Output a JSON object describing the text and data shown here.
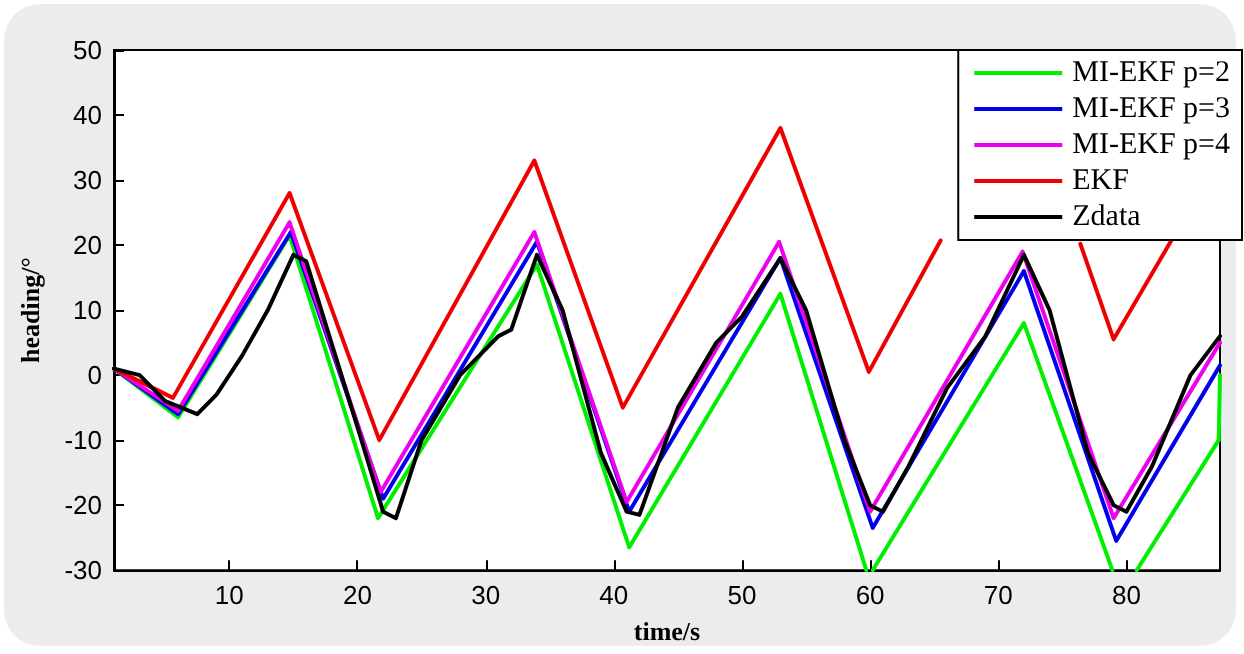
{
  "chart_data": {
    "type": "line",
    "xlabel": "time/s",
    "ylabel": "heading/°",
    "xlim": [
      1,
      87.3
    ],
    "xticks": [
      10,
      20,
      30,
      40,
      50,
      60,
      70,
      80
    ],
    "ylim": [
      -30,
      50
    ],
    "yticks": [
      -30,
      -20,
      -10,
      0,
      10,
      20,
      30,
      40,
      50
    ],
    "grid": false,
    "legend": "top right",
    "marker": "none",
    "line_style": "solid",
    "series": [
      {
        "name": "MI-EKF p=2",
        "color": "#00ee00",
        "x": [
          1,
          6,
          14.7,
          21.6,
          34,
          41.2,
          53,
          59.7,
          60,
          60.2,
          72,
          78.9,
          80,
          80.8,
          87.2,
          87.3
        ],
        "values": [
          1,
          -6.5,
          21.5,
          -22,
          17,
          -26.5,
          12.5,
          -30,
          null,
          -30,
          8,
          -30,
          null,
          -30,
          -10,
          0
        ]
      },
      {
        "name": "MI-EKF p=3",
        "color": "#0000ee",
        "x": [
          1,
          6,
          14.8,
          22,
          34,
          41.2,
          53,
          60.2,
          72,
          79.2,
          87.3
        ],
        "values": [
          1,
          -6,
          22,
          -19,
          20.5,
          -21,
          18,
          -23.5,
          16,
          -25.5,
          1.5
        ]
      },
      {
        "name": "MI-EKF p=4",
        "color": "#ee00ee",
        "x": [
          1,
          6,
          14.7,
          21.8,
          33.8,
          41,
          52.9,
          60,
          71.9,
          79,
          87.3
        ],
        "values": [
          1,
          -5.5,
          23.5,
          -18,
          22,
          -19.5,
          20.5,
          -21,
          19,
          -22,
          5
        ]
      },
      {
        "name": "EKF",
        "color": "#ee0000",
        "x": [
          1,
          5.6,
          14.7,
          21.7,
          33.8,
          40.7,
          53,
          59.9,
          65.5,
          70,
          76.4,
          79,
          83.5
        ],
        "values": [
          1,
          -3.5,
          28,
          -10,
          33,
          -5,
          38,
          0.5,
          20.7,
          null,
          20.2,
          5.5,
          20.7
        ]
      },
      {
        "name": "Zdata",
        "color": "#000000",
        "x": [
          1,
          3,
          5,
          7.5,
          9,
          11,
          13,
          15,
          16,
          20,
          22,
          23,
          25,
          28,
          31,
          32,
          34,
          36,
          39,
          41,
          42,
          45,
          48,
          50,
          53,
          55,
          58,
          60,
          61,
          63,
          66,
          69,
          72,
          74,
          77,
          79,
          80,
          82,
          85,
          87.3
        ],
        "values": [
          1,
          0,
          -4,
          -6,
          -3,
          3,
          10,
          18.5,
          17.5,
          -8,
          -21,
          -22,
          -10,
          0,
          6,
          7,
          18.5,
          10,
          -12,
          -21,
          -21.5,
          -5,
          5,
          9,
          18,
          10,
          -10,
          -20,
          -21,
          -14,
          -2,
          6,
          18.5,
          10,
          -12,
          -20,
          -21,
          -14,
          0,
          6
        ]
      }
    ]
  }
}
